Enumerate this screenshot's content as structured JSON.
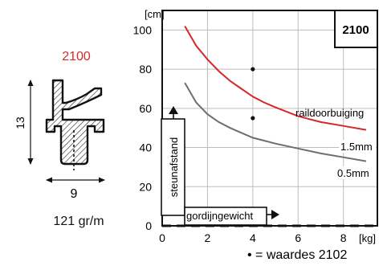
{
  "profile": {
    "code": "2100",
    "height_label": "13",
    "width_label": "9",
    "weight": "121 gr/m"
  },
  "footnote": "• = waardes 2102",
  "chart_data": {
    "type": "line",
    "title": "2100",
    "ylabel": "steunafstand",
    "xlabel": "gordijngewicht",
    "y_unit": "[cm]",
    "x_unit": "[kg]",
    "xlim": [
      0,
      9.5
    ],
    "ylim": [
      0,
      110
    ],
    "x_ticks": [
      0,
      2,
      4,
      6,
      8
    ],
    "y_ticks": [
      0,
      20,
      40,
      60,
      80,
      100
    ],
    "grid": true,
    "annotation": "raildoorbuiging",
    "series": [
      {
        "name": "1.5mm",
        "color": "#d62828",
        "x": [
          1,
          1.5,
          2,
          2.5,
          3,
          3.5,
          4,
          4.5,
          5,
          6,
          7,
          8,
          9
        ],
        "y": [
          102,
          92,
          85,
          79,
          74,
          70,
          66,
          63,
          60.5,
          56,
          53,
          51,
          49
        ]
      },
      {
        "name": "0.5mm",
        "color": "#6e6e6e",
        "x": [
          1,
          1.5,
          2,
          2.5,
          3,
          3.5,
          4,
          4.5,
          5,
          6,
          7,
          8,
          9
        ],
        "y": [
          73,
          63,
          57,
          53,
          50,
          47.5,
          45,
          43.5,
          42,
          39.5,
          37,
          35,
          33
        ]
      }
    ],
    "points_2102": [
      {
        "x": 4,
        "y": 80
      },
      {
        "x": 4,
        "y": 55
      }
    ]
  }
}
